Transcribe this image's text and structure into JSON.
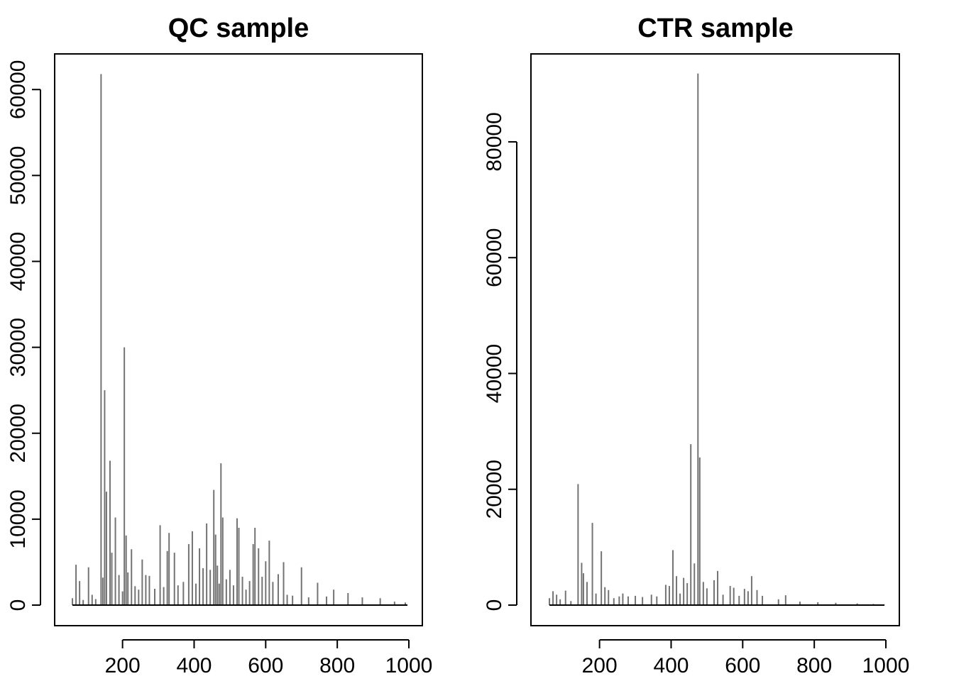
{
  "chart_data": [
    {
      "type": "line",
      "title": "QC sample",
      "xlabel": "",
      "ylabel": "",
      "xlim": [
        50,
        1000
      ],
      "ylim": [
        0,
        62000
      ],
      "x_ticks": [
        200,
        400,
        600,
        800,
        1000
      ],
      "y_ticks": [
        0,
        10000,
        20000,
        30000,
        40000,
        50000,
        60000
      ],
      "grid": false,
      "series": [
        {
          "x": [
            60,
            70,
            80,
            90,
            105,
            115,
            125,
            140,
            145,
            150,
            155,
            165,
            170,
            180,
            190,
            200,
            205,
            210,
            215,
            225,
            235,
            245,
            255,
            265,
            275,
            290,
            305,
            315,
            325,
            330,
            345,
            355,
            370,
            385,
            395,
            405,
            415,
            425,
            435,
            445,
            455,
            460,
            465,
            470,
            475,
            480,
            490,
            500,
            510,
            520,
            525,
            535,
            545,
            555,
            565,
            570,
            580,
            590,
            600,
            610,
            620,
            635,
            650,
            660,
            675,
            700,
            720,
            745,
            770,
            790,
            830,
            870,
            920,
            960,
            990
          ],
          "y": [
            800,
            4700,
            2800,
            600,
            4400,
            1200,
            700,
            61800,
            3200,
            25000,
            13200,
            16800,
            6100,
            10200,
            3500,
            1600,
            30000,
            8100,
            3800,
            6500,
            2200,
            1800,
            5300,
            3500,
            3400,
            1900,
            9300,
            2100,
            6300,
            8400,
            6100,
            2300,
            2700,
            7100,
            8600,
            2500,
            6600,
            4300,
            9500,
            4100,
            13400,
            8200,
            4600,
            2500,
            16500,
            10200,
            3000,
            4100,
            2300,
            10100,
            9000,
            3300,
            1800,
            2800,
            7100,
            9000,
            6600,
            3300,
            5100,
            7500,
            2700,
            3600,
            5000,
            1200,
            1100,
            4400,
            900,
            2600,
            1000,
            1800,
            1400,
            900,
            800,
            400,
            300
          ]
        }
      ]
    },
    {
      "type": "line",
      "title": "CTR sample",
      "xlabel": "",
      "ylabel": "",
      "xlim": [
        50,
        1000
      ],
      "ylim": [
        0,
        92000
      ],
      "x_ticks": [
        200,
        400,
        600,
        800,
        1000
      ],
      "y_ticks": [
        0,
        20000,
        40000,
        60000,
        80000
      ],
      "grid": false,
      "series": [
        {
          "x": [
            60,
            70,
            80,
            90,
            105,
            120,
            140,
            150,
            155,
            165,
            180,
            190,
            205,
            215,
            225,
            240,
            255,
            265,
            280,
            300,
            320,
            345,
            360,
            385,
            395,
            405,
            415,
            425,
            435,
            445,
            455,
            465,
            475,
            480,
            490,
            500,
            520,
            530,
            545,
            565,
            575,
            590,
            605,
            615,
            625,
            640,
            655,
            700,
            720,
            760,
            810,
            860,
            920,
            965,
            995
          ],
          "y": [
            1200,
            2400,
            1800,
            1000,
            2500,
            700,
            20900,
            7300,
            5500,
            4000,
            14200,
            2000,
            9300,
            3100,
            2600,
            1200,
            1500,
            2000,
            1500,
            1600,
            1400,
            1800,
            1500,
            3500,
            3300,
            9500,
            5000,
            2000,
            4700,
            3800,
            27800,
            7200,
            91800,
            25500,
            4000,
            2900,
            4300,
            5900,
            1800,
            3300,
            3000,
            1600,
            2800,
            2400,
            5000,
            2600,
            1600,
            1000,
            1700,
            600,
            500,
            400,
            300,
            200,
            100
          ]
        }
      ]
    }
  ]
}
